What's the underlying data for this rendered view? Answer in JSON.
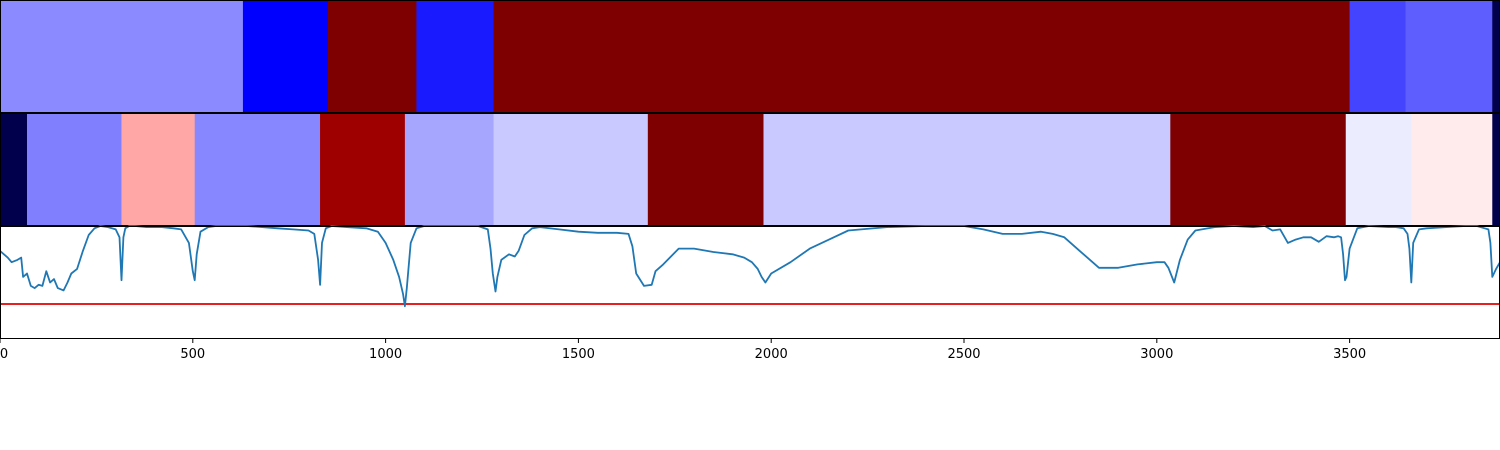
{
  "chart_data": [
    {
      "type": "heatmap",
      "colormap": "seismic",
      "segments": [
        {
          "start": 0,
          "end": 630,
          "color": "#8b8bff"
        },
        {
          "start": 630,
          "end": 850,
          "color": "#0000ff"
        },
        {
          "start": 850,
          "end": 1080,
          "color": "#7f0000"
        },
        {
          "start": 1080,
          "end": 1280,
          "color": "#1a1aff"
        },
        {
          "start": 1280,
          "end": 3500,
          "color": "#7f0000"
        },
        {
          "start": 3500,
          "end": 3645,
          "color": "#4444ff"
        },
        {
          "start": 3645,
          "end": 3870,
          "color": "#5e5eff"
        },
        {
          "start": 3870,
          "end": 3890,
          "color": "#00004c"
        }
      ]
    },
    {
      "type": "heatmap",
      "colormap": "seismic",
      "segments": [
        {
          "start": 0,
          "end": 70,
          "color": "#00004c"
        },
        {
          "start": 70,
          "end": 315,
          "color": "#8080ff"
        },
        {
          "start": 315,
          "end": 505,
          "color": "#ffa6a6"
        },
        {
          "start": 505,
          "end": 830,
          "color": "#8787ff"
        },
        {
          "start": 830,
          "end": 1050,
          "color": "#9e0000"
        },
        {
          "start": 1050,
          "end": 1280,
          "color": "#a6a6ff"
        },
        {
          "start": 1280,
          "end": 1680,
          "color": "#c9c9ff"
        },
        {
          "start": 1680,
          "end": 1980,
          "color": "#7f0000"
        },
        {
          "start": 1980,
          "end": 3035,
          "color": "#c9c9ff"
        },
        {
          "start": 3035,
          "end": 3490,
          "color": "#7f0000"
        },
        {
          "start": 3490,
          "end": 3660,
          "color": "#ececff"
        },
        {
          "start": 3660,
          "end": 3870,
          "color": "#ffebeb"
        },
        {
          "start": 3870,
          "end": 3890,
          "color": "#00004c"
        }
      ]
    },
    {
      "type": "line",
      "xlim": [
        0,
        3890
      ],
      "ylim": [
        0,
        1
      ],
      "x_ticks": [
        0,
        500,
        1000,
        1500,
        2000,
        2500,
        3000,
        3500
      ],
      "x_tick_labels": [
        "0",
        "500",
        "1000",
        "1500",
        "2000",
        "2500",
        "3000",
        "3500"
      ],
      "threshold": 0.31,
      "threshold_color": "#e00000",
      "line_color": "#1f77b4",
      "series": [
        {
          "x": [
            0,
            20,
            30,
            45,
            55,
            60,
            70,
            80,
            90,
            100,
            110,
            120,
            130,
            140,
            150,
            165,
            175,
            185,
            200,
            215,
            230,
            245,
            260,
            280,
            300,
            310,
            315,
            320,
            325,
            335,
            350,
            380,
            420,
            450,
            470,
            490,
            500,
            505,
            510,
            520,
            540,
            560,
            600,
            640,
            680,
            720,
            760,
            800,
            815,
            825,
            830,
            835,
            845,
            860,
            900,
            950,
            980,
            1000,
            1020,
            1035,
            1045,
            1050,
            1055,
            1065,
            1080,
            1100,
            1150,
            1200,
            1240,
            1265,
            1272,
            1278,
            1285,
            1290,
            1300,
            1320,
            1335,
            1345,
            1360,
            1380,
            1400,
            1450,
            1500,
            1550,
            1600,
            1630,
            1640,
            1650,
            1670,
            1690,
            1700,
            1720,
            1760,
            1800,
            1850,
            1900,
            1930,
            1950,
            1965,
            1975,
            1985,
            2000,
            2050,
            2100,
            2150,
            2200,
            2300,
            2400,
            2500,
            2550,
            2600,
            2650,
            2700,
            2730,
            2760,
            2800,
            2850,
            2900,
            2950,
            3000,
            3020,
            3030,
            3045,
            3060,
            3080,
            3100,
            3150,
            3200,
            3250,
            3280,
            3300,
            3320,
            3340,
            3360,
            3380,
            3400,
            3420,
            3440,
            3460,
            3470,
            3478,
            3483,
            3488,
            3492,
            3500,
            3520,
            3550,
            3600,
            3620,
            3640,
            3650,
            3655,
            3660,
            3665,
            3680,
            3700,
            3750,
            3800,
            3830,
            3850,
            3860,
            3865,
            3870,
            3880,
            3890
          ],
          "y": [
            0.78,
            0.72,
            0.68,
            0.7,
            0.72,
            0.55,
            0.58,
            0.47,
            0.45,
            0.48,
            0.47,
            0.6,
            0.5,
            0.53,
            0.45,
            0.43,
            0.5,
            0.58,
            0.62,
            0.78,
            0.92,
            0.98,
            1.0,
            0.99,
            0.97,
            0.9,
            0.52,
            0.9,
            0.98,
            1.0,
            1.0,
            0.99,
            0.99,
            0.98,
            0.97,
            0.85,
            0.6,
            0.52,
            0.75,
            0.95,
            0.99,
            1.0,
            1.0,
            1.0,
            0.99,
            0.98,
            0.97,
            0.96,
            0.93,
            0.7,
            0.48,
            0.85,
            0.98,
            1.0,
            0.99,
            0.98,
            0.95,
            0.85,
            0.7,
            0.55,
            0.4,
            0.29,
            0.45,
            0.85,
            0.98,
            1.0,
            1.0,
            1.0,
            1.0,
            0.97,
            0.8,
            0.58,
            0.42,
            0.55,
            0.7,
            0.75,
            0.73,
            0.78,
            0.92,
            0.98,
            0.99,
            0.97,
            0.95,
            0.94,
            0.94,
            0.93,
            0.82,
            0.58,
            0.47,
            0.48,
            0.6,
            0.66,
            0.8,
            0.8,
            0.77,
            0.75,
            0.72,
            0.68,
            0.62,
            0.55,
            0.5,
            0.58,
            0.68,
            0.8,
            0.88,
            0.96,
            0.99,
            1.0,
            1.0,
            0.97,
            0.93,
            0.93,
            0.95,
            0.93,
            0.9,
            0.78,
            0.63,
            0.63,
            0.66,
            0.68,
            0.68,
            0.63,
            0.5,
            0.7,
            0.88,
            0.96,
            0.99,
            1.0,
            0.99,
            1.0,
            0.96,
            0.97,
            0.85,
            0.88,
            0.9,
            0.9,
            0.86,
            0.91,
            0.9,
            0.91,
            0.9,
            0.75,
            0.52,
            0.55,
            0.8,
            0.98,
            1.0,
            0.99,
            0.99,
            0.98,
            0.93,
            0.8,
            0.5,
            0.85,
            0.97,
            0.98,
            0.99,
            1.0,
            1.0,
            0.98,
            0.97,
            0.85,
            0.55,
            0.62,
            0.68
          ]
        }
      ]
    }
  ]
}
